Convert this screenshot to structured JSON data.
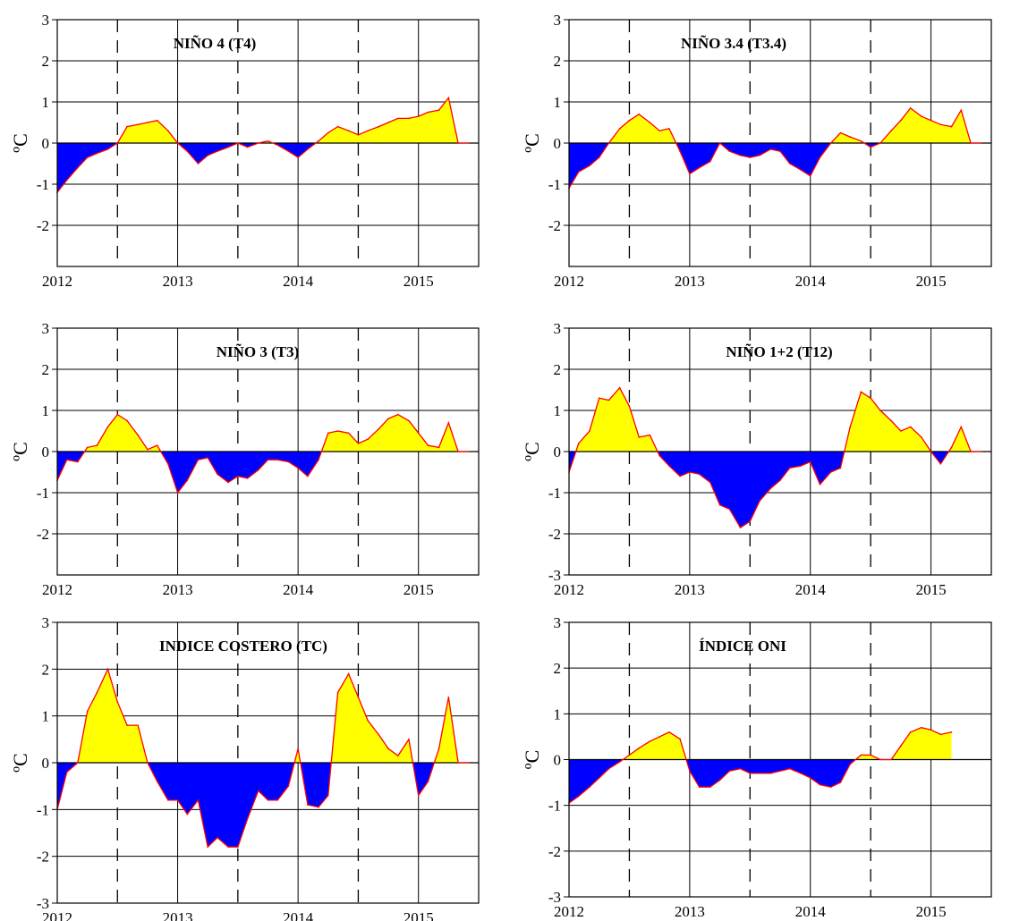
{
  "chart_data": [
    {
      "type": "area",
      "title": "NIÑO 4 (T4)",
      "ylabel": "ºC",
      "xlabel": "",
      "xlim": [
        2012.0,
        2015.5
      ],
      "ylim": [
        -3,
        3
      ],
      "xticks": [
        2012,
        2013,
        2014,
        2015
      ],
      "yticks": [
        3,
        2,
        1,
        0,
        -1,
        -2
      ],
      "dashed_x": [
        2012.5,
        2013.5,
        2014.5
      ],
      "grid": true,
      "positive_color": "#ffff00",
      "negative_color": "#0000ff",
      "line_color": "#ff0000",
      "x": [
        2012.0,
        2012.08,
        2012.17,
        2012.25,
        2012.33,
        2012.42,
        2012.5,
        2012.58,
        2012.67,
        2012.75,
        2012.83,
        2012.92,
        2013.0,
        2013.08,
        2013.17,
        2013.25,
        2013.33,
        2013.42,
        2013.5,
        2013.58,
        2013.67,
        2013.75,
        2013.83,
        2013.92,
        2014.0,
        2014.08,
        2014.17,
        2014.25,
        2014.33,
        2014.42,
        2014.5,
        2014.58,
        2014.67,
        2014.75,
        2014.83,
        2014.92,
        2015.0,
        2015.08,
        2015.17,
        2015.25,
        2015.33,
        2015.42
      ],
      "y": [
        -1.2,
        -0.9,
        -0.6,
        -0.35,
        -0.25,
        -0.15,
        0.0,
        0.4,
        0.45,
        0.5,
        0.55,
        0.3,
        0.0,
        -0.2,
        -0.5,
        -0.3,
        -0.2,
        -0.1,
        0.0,
        -0.1,
        0.0,
        0.05,
        -0.05,
        -0.2,
        -0.35,
        -0.15,
        0.05,
        0.25,
        0.4,
        0.3,
        0.2,
        0.3,
        0.4,
        0.5,
        0.6,
        0.6,
        0.65,
        0.75,
        0.8,
        1.1,
        0.0,
        0.0
      ]
    },
    {
      "type": "area",
      "title": "NIÑO 3.4 (T3.4)",
      "ylabel": "ºC",
      "xlabel": "",
      "xlim": [
        2012.0,
        2015.5
      ],
      "ylim": [
        -3,
        3
      ],
      "xticks": [
        2012,
        2013,
        2014,
        2015
      ],
      "yticks": [
        3,
        2,
        1,
        0,
        -1,
        -2
      ],
      "dashed_x": [
        2012.5,
        2013.5,
        2014.5
      ],
      "grid": true,
      "positive_color": "#ffff00",
      "negative_color": "#0000ff",
      "line_color": "#ff0000",
      "x": [
        2012.0,
        2012.08,
        2012.17,
        2012.25,
        2012.33,
        2012.42,
        2012.5,
        2012.58,
        2012.67,
        2012.75,
        2012.83,
        2012.92,
        2013.0,
        2013.08,
        2013.17,
        2013.25,
        2013.33,
        2013.42,
        2013.5,
        2013.58,
        2013.67,
        2013.75,
        2013.83,
        2013.92,
        2014.0,
        2014.08,
        2014.17,
        2014.25,
        2014.33,
        2014.42,
        2014.5,
        2014.58,
        2014.67,
        2014.75,
        2014.83,
        2014.92,
        2015.0,
        2015.08,
        2015.17,
        2015.25,
        2015.33,
        2015.42
      ],
      "y": [
        -1.1,
        -0.7,
        -0.55,
        -0.35,
        0.0,
        0.35,
        0.55,
        0.7,
        0.5,
        0.3,
        0.35,
        -0.2,
        -0.75,
        -0.6,
        -0.45,
        0.0,
        -0.2,
        -0.3,
        -0.35,
        -0.3,
        -0.15,
        -0.2,
        -0.5,
        -0.65,
        -0.8,
        -0.35,
        0.0,
        0.25,
        0.15,
        0.05,
        -0.1,
        0.0,
        0.3,
        0.55,
        0.85,
        0.65,
        0.55,
        0.45,
        0.4,
        0.8,
        0.0,
        0.0
      ]
    },
    {
      "type": "area",
      "title": "NIÑO 3 (T3)",
      "ylabel": "ºC",
      "xlabel": "",
      "xlim": [
        2012.0,
        2015.5
      ],
      "ylim": [
        -3,
        3
      ],
      "xticks": [
        2012,
        2013,
        2014,
        2015
      ],
      "yticks": [
        3,
        2,
        1,
        0,
        -1,
        -2
      ],
      "dashed_x": [
        2012.5,
        2013.5,
        2014.5
      ],
      "grid": true,
      "positive_color": "#ffff00",
      "negative_color": "#0000ff",
      "line_color": "#ff0000",
      "x": [
        2012.0,
        2012.08,
        2012.17,
        2012.25,
        2012.33,
        2012.42,
        2012.5,
        2012.58,
        2012.67,
        2012.75,
        2012.83,
        2012.92,
        2013.0,
        2013.08,
        2013.17,
        2013.25,
        2013.33,
        2013.42,
        2013.5,
        2013.58,
        2013.67,
        2013.75,
        2013.83,
        2013.92,
        2014.0,
        2014.08,
        2014.17,
        2014.25,
        2014.33,
        2014.42,
        2014.5,
        2014.58,
        2014.67,
        2014.75,
        2014.83,
        2014.92,
        2015.0,
        2015.08,
        2015.17,
        2015.25,
        2015.33,
        2015.42
      ],
      "y": [
        -0.7,
        -0.2,
        -0.25,
        0.1,
        0.15,
        0.6,
        0.9,
        0.75,
        0.4,
        0.05,
        0.15,
        -0.3,
        -1.0,
        -0.7,
        -0.2,
        -0.15,
        -0.55,
        -0.75,
        -0.6,
        -0.65,
        -0.45,
        -0.2,
        -0.2,
        -0.25,
        -0.4,
        -0.6,
        -0.2,
        0.45,
        0.5,
        0.45,
        0.2,
        0.3,
        0.55,
        0.8,
        0.9,
        0.75,
        0.45,
        0.15,
        0.1,
        0.7,
        0.0,
        0.0
      ]
    },
    {
      "type": "area",
      "title": "NIÑO 1+2 (T12)",
      "ylabel": "ºC",
      "xlabel": "",
      "xlim": [
        2012.0,
        2015.5
      ],
      "ylim": [
        -3,
        3
      ],
      "xticks": [
        2012,
        2013,
        2014,
        2015
      ],
      "yticks": [
        3,
        2,
        1,
        0,
        -1,
        -2,
        -3
      ],
      "dashed_x": [
        2012.5,
        2013.5,
        2014.5
      ],
      "grid": true,
      "positive_color": "#ffff00",
      "negative_color": "#0000ff",
      "line_color": "#ff0000",
      "x": [
        2012.0,
        2012.08,
        2012.17,
        2012.25,
        2012.33,
        2012.42,
        2012.5,
        2012.58,
        2012.67,
        2012.75,
        2012.83,
        2012.92,
        2013.0,
        2013.08,
        2013.17,
        2013.25,
        2013.33,
        2013.42,
        2013.5,
        2013.58,
        2013.67,
        2013.75,
        2013.83,
        2013.92,
        2014.0,
        2014.08,
        2014.17,
        2014.25,
        2014.33,
        2014.42,
        2014.5,
        2014.58,
        2014.67,
        2014.75,
        2014.83,
        2014.92,
        2015.0,
        2015.08,
        2015.17,
        2015.25,
        2015.33,
        2015.42
      ],
      "y": [
        -0.5,
        0.2,
        0.5,
        1.3,
        1.25,
        1.55,
        1.1,
        0.35,
        0.4,
        -0.1,
        -0.35,
        -0.6,
        -0.5,
        -0.55,
        -0.75,
        -1.3,
        -1.4,
        -1.85,
        -1.7,
        -1.2,
        -0.9,
        -0.7,
        -0.4,
        -0.35,
        -0.25,
        -0.8,
        -0.5,
        -0.4,
        0.6,
        1.45,
        1.3,
        1.0,
        0.75,
        0.5,
        0.6,
        0.35,
        0.0,
        -0.3,
        0.1,
        0.6,
        0.0,
        0.0
      ]
    },
    {
      "type": "area",
      "title": "INDICE COSTERO (TC)",
      "ylabel": "ºC",
      "xlabel": "",
      "xlim": [
        2012.0,
        2015.5
      ],
      "ylim": [
        -3,
        3
      ],
      "xticks": [
        2012,
        2013,
        2014,
        2015
      ],
      "yticks": [
        3,
        2,
        1,
        0,
        -1,
        -2,
        -3
      ],
      "dashed_x": [
        2012.5,
        2013.5,
        2014.5
      ],
      "grid": true,
      "positive_color": "#ffff00",
      "negative_color": "#0000ff",
      "line_color": "#ff0000",
      "x": [
        2012.0,
        2012.08,
        2012.17,
        2012.25,
        2012.33,
        2012.42,
        2012.5,
        2012.58,
        2012.67,
        2012.75,
        2012.83,
        2012.92,
        2013.0,
        2013.08,
        2013.17,
        2013.25,
        2013.33,
        2013.42,
        2013.5,
        2013.58,
        2013.67,
        2013.75,
        2013.83,
        2013.92,
        2014.0,
        2014.08,
        2014.17,
        2014.25,
        2014.33,
        2014.42,
        2014.5,
        2014.58,
        2014.67,
        2014.75,
        2014.83,
        2014.92,
        2015.0,
        2015.08,
        2015.17,
        2015.25,
        2015.33,
        2015.42
      ],
      "y": [
        -1.0,
        -0.2,
        0.0,
        1.1,
        1.5,
        2.0,
        1.3,
        0.8,
        0.8,
        0.0,
        -0.4,
        -0.8,
        -0.8,
        -1.1,
        -0.8,
        -1.8,
        -1.6,
        -1.8,
        -1.8,
        -1.2,
        -0.6,
        -0.8,
        -0.8,
        -0.5,
        0.3,
        -0.9,
        -0.95,
        -0.7,
        1.5,
        1.9,
        1.4,
        0.9,
        0.6,
        0.3,
        0.15,
        0.5,
        -0.7,
        -0.4,
        0.3,
        1.4,
        0.0,
        0.0
      ]
    },
    {
      "type": "area",
      "title": "ÍNDICE ONI",
      "ylabel": "ºC",
      "xlabel": "",
      "xlim": [
        2012.0,
        2015.5
      ],
      "ylim": [
        -3,
        3
      ],
      "xticks": [
        2012,
        2013,
        2014,
        2015
      ],
      "yticks": [
        3,
        2,
        1,
        0,
        -1,
        -2,
        -3
      ],
      "dashed_x": [
        2012.5,
        2013.5,
        2014.5
      ],
      "grid": true,
      "positive_color": "#ffff00",
      "negative_color": "#0000ff",
      "line_color": "#ff0000",
      "x": [
        2012.0,
        2012.08,
        2012.17,
        2012.25,
        2012.33,
        2012.42,
        2012.5,
        2012.58,
        2012.67,
        2012.75,
        2012.83,
        2012.92,
        2013.0,
        2013.08,
        2013.17,
        2013.25,
        2013.33,
        2013.42,
        2013.5,
        2013.58,
        2013.67,
        2013.75,
        2013.83,
        2013.92,
        2014.0,
        2014.08,
        2014.17,
        2014.25,
        2014.33,
        2014.42,
        2014.5,
        2014.58,
        2014.67,
        2014.75,
        2014.83,
        2014.92,
        2015.0,
        2015.08,
        2015.17
      ],
      "y": [
        -0.95,
        -0.8,
        -0.6,
        -0.4,
        -0.2,
        -0.05,
        0.1,
        0.25,
        0.4,
        0.5,
        0.6,
        0.45,
        -0.25,
        -0.6,
        -0.6,
        -0.45,
        -0.25,
        -0.2,
        -0.3,
        -0.3,
        -0.3,
        -0.25,
        -0.2,
        -0.3,
        -0.4,
        -0.55,
        -0.6,
        -0.5,
        -0.1,
        0.1,
        0.1,
        0.0,
        0.0,
        0.3,
        0.6,
        0.7,
        0.65,
        0.55,
        0.6
      ]
    }
  ]
}
